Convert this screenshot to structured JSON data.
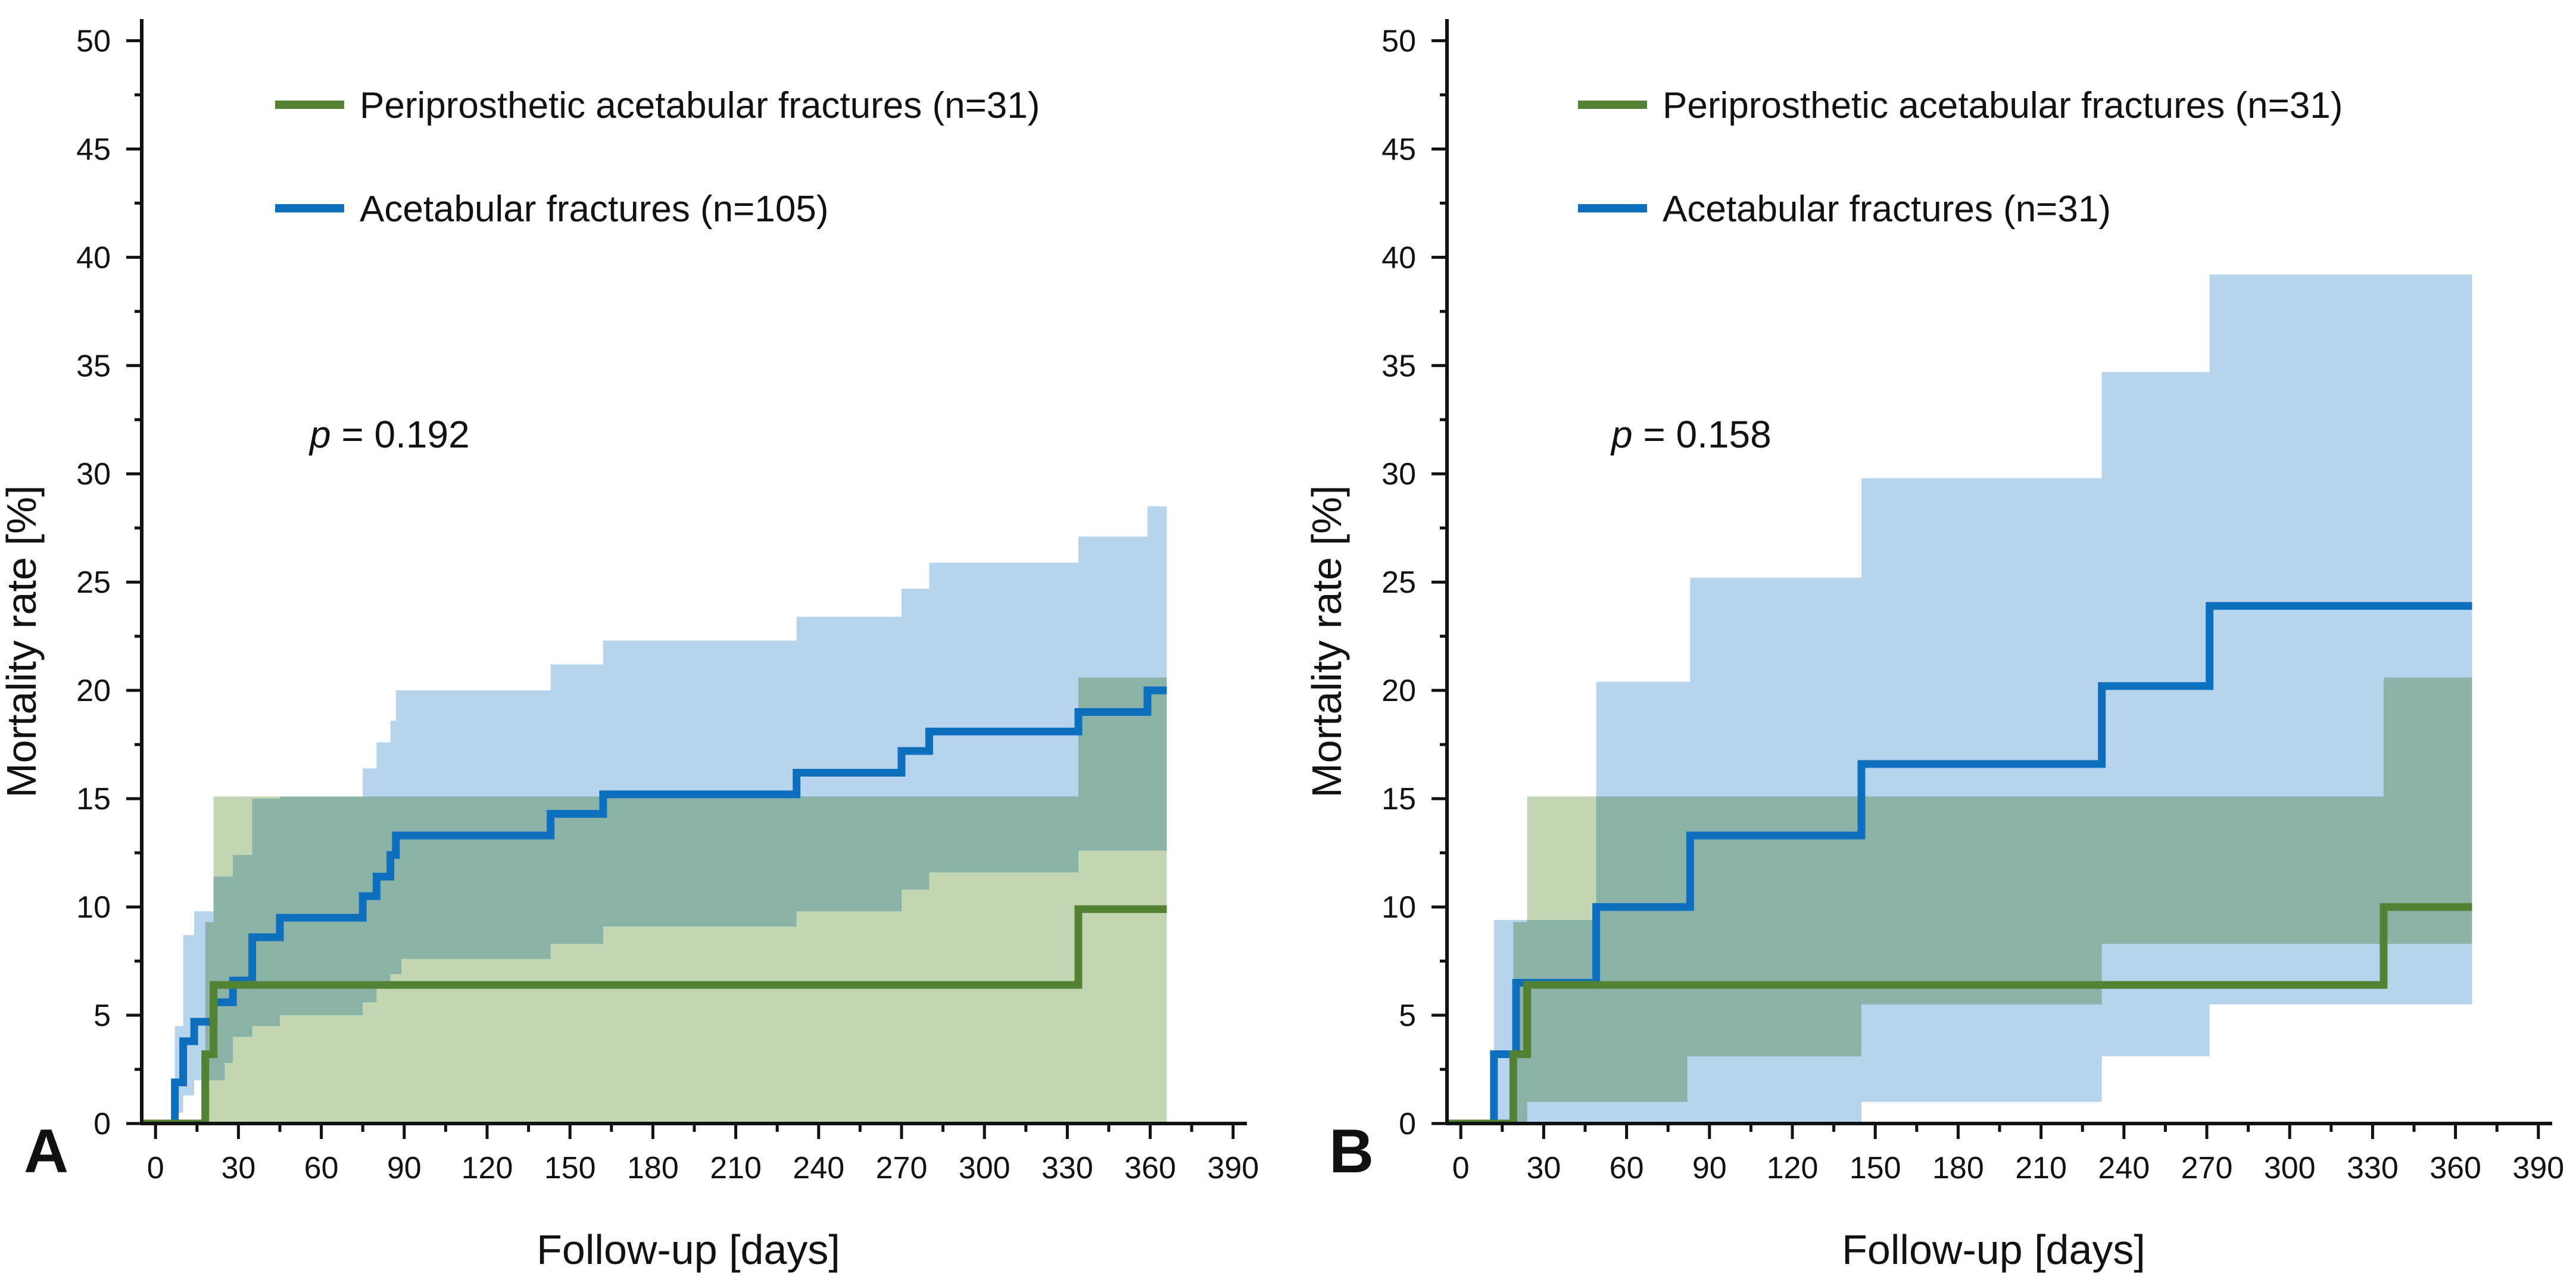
{
  "colors": {
    "periprosthetic_line": "#548235",
    "acetabular_line": "#0e6fbf",
    "periprosthetic_band": "#c2d6b4",
    "acetabular_band": "#a9cdea",
    "overlap_band": "#8fb5ad",
    "axis": "#111111"
  },
  "chart_data": [
    {
      "type": "line",
      "panel": "A",
      "step": true,
      "xlabel": "Follow-up [days]",
      "ylabel": "Mortality rate [%]",
      "xlim": [
        -5,
        395
      ],
      "ylim": [
        0,
        51
      ],
      "xticks": [
        0,
        30,
        60,
        90,
        120,
        150,
        180,
        210,
        240,
        270,
        300,
        330,
        360,
        390
      ],
      "yticks": [
        0,
        5,
        10,
        15,
        20,
        25,
        30,
        35,
        40,
        45,
        50
      ],
      "annotation": {
        "prefix": "p",
        "text": " = 0.192"
      },
      "legend_position": "top-left",
      "series": [
        {
          "name": "Periprosthetic acetabular fractures (n=31)",
          "key": "periprosthetic",
          "x": [
            -5,
            18,
            21,
            24,
            334,
            366
          ],
          "y": [
            0,
            3.2,
            6.4,
            6.4,
            9.9,
            9.9
          ],
          "ci_x": [
            -5,
            18,
            21,
            24,
            334,
            366
          ],
          "ci_lower": [
            0,
            0,
            0,
            0,
            0,
            0
          ],
          "ci_upper": [
            0,
            9.3,
            15.1,
            15.1,
            20.6,
            20.6
          ]
        },
        {
          "name": "Acetabular fractures (n=105)",
          "key": "acetabular",
          "x": [
            -5,
            7,
            10,
            14,
            21,
            25,
            28,
            35,
            45,
            75,
            80,
            85,
            87,
            89,
            143,
            162,
            232,
            270,
            280,
            334,
            359,
            366
          ],
          "y": [
            0,
            1.9,
            3.8,
            4.7,
            5.6,
            5.6,
            6.6,
            8.6,
            9.5,
            10.5,
            11.4,
            12.4,
            13.3,
            13.3,
            14.3,
            15.2,
            16.2,
            17.2,
            18.1,
            19.0,
            20.0,
            20.0
          ],
          "ci_x": [
            -5,
            7,
            10,
            14,
            21,
            25,
            28,
            35,
            45,
            75,
            80,
            85,
            87,
            89,
            143,
            162,
            232,
            270,
            280,
            334,
            359,
            366
          ],
          "ci_lower": [
            0,
            0,
            0.5,
            1.3,
            2.0,
            2.0,
            2.8,
            4.0,
            4.5,
            5.0,
            5.6,
            6.3,
            6.9,
            6.9,
            7.6,
            8.3,
            9.1,
            9.8,
            10.8,
            11.6,
            12.6,
            12.6
          ],
          "ci_upper": [
            0,
            4.5,
            8.7,
            9.8,
            11.4,
            11.4,
            12.4,
            15.0,
            15.1,
            16.4,
            17.6,
            18.6,
            20.0,
            20.0,
            21.2,
            22.3,
            23.4,
            24.7,
            25.9,
            27.1,
            28.5,
            28.5
          ]
        }
      ]
    },
    {
      "type": "line",
      "panel": "B",
      "step": true,
      "xlabel": "Follow-up [days]",
      "ylabel": "Mortality rate [%]",
      "xlim": [
        -5,
        395
      ],
      "ylim": [
        0,
        51
      ],
      "xticks": [
        0,
        30,
        60,
        90,
        120,
        150,
        180,
        210,
        240,
        270,
        300,
        330,
        360,
        390
      ],
      "yticks": [
        0,
        5,
        10,
        15,
        20,
        25,
        30,
        35,
        40,
        45,
        50
      ],
      "annotation": {
        "prefix": "p",
        "text": " = 0.158"
      },
      "legend_position": "top-left",
      "series": [
        {
          "name": "Periprosthetic acetabular fractures (n=31)",
          "key": "periprosthetic",
          "x": [
            -5,
            19,
            24,
            334,
            366
          ],
          "y": [
            0,
            3.2,
            6.4,
            10.0,
            10.0
          ],
          "ci_x": [
            -5,
            19,
            24,
            82,
            145,
            232,
            270,
            334,
            366
          ],
          "ci_lower": [
            0,
            0,
            0,
            1.0,
            3.1,
            5.5,
            8.3,
            8.3,
            8.3
          ],
          "ci_upper": [
            0,
            9.3,
            15.1,
            15.1,
            15.1,
            15.1,
            15.1,
            20.6,
            20.6
          ]
        },
        {
          "name": "Acetabular fractures (n=31)",
          "key": "acetabular",
          "x": [
            -5,
            12,
            20,
            49,
            83,
            145,
            232,
            271,
            366
          ],
          "y": [
            0,
            3.2,
            6.5,
            10.0,
            13.3,
            16.6,
            20.2,
            23.9,
            23.9
          ],
          "ci_x": [
            -5,
            12,
            20,
            49,
            83,
            145,
            232,
            271,
            366
          ],
          "ci_lower": [
            0,
            0,
            0,
            0,
            0,
            0,
            1.0,
            3.1,
            5.5
          ],
          "ci_upper": [
            0,
            9.4,
            9.4,
            20.4,
            25.2,
            29.8,
            34.7,
            39.2,
            39.2
          ]
        }
      ]
    }
  ]
}
